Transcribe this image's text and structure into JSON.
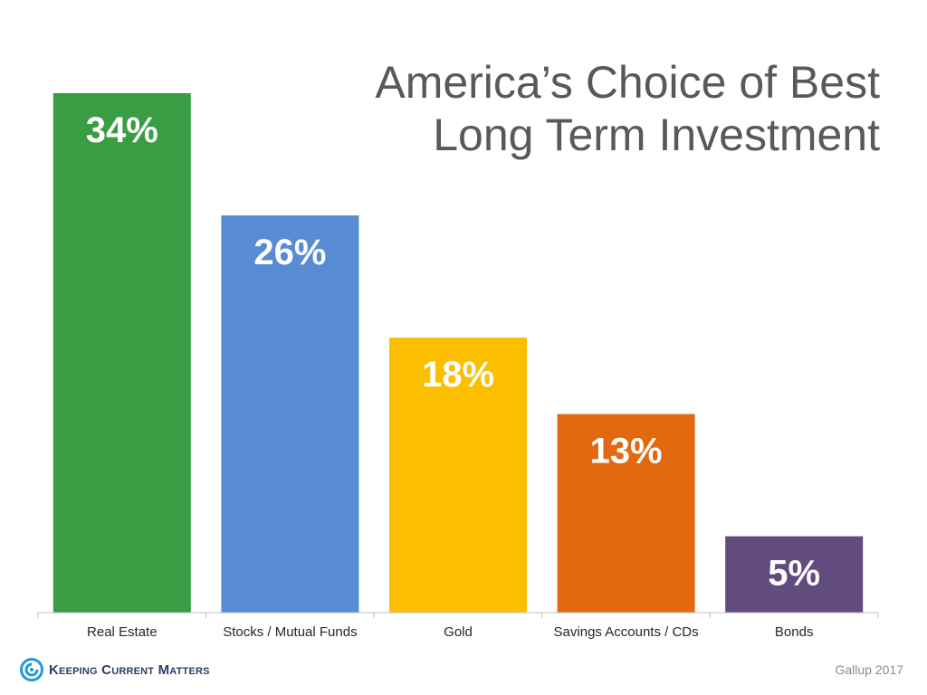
{
  "header": {
    "title_line1": "America’s Choice of Best",
    "title_line2": "Long Term Investment"
  },
  "footer": {
    "brand": "Keeping Current Matters",
    "source": "Gallup 2017"
  },
  "colors": {
    "text": "#595959",
    "label": "#ffffff",
    "axis": "#bfbfbf",
    "brand": "#2b3e63",
    "logo_accent": "#1f9bd7"
  },
  "chart_data": {
    "type": "bar",
    "title": "America’s Choice of Best Long Term Investment",
    "categories": [
      "Real Estate",
      "Stocks / Mutual Funds",
      "Gold",
      "Savings Accounts / CDs",
      "Bonds"
    ],
    "values": [
      34,
      26,
      18,
      13,
      5
    ],
    "data_labels": [
      "34%",
      "26%",
      "18%",
      "13%",
      "5%"
    ],
    "unit": "%",
    "colors": [
      "#3a9c43",
      "#578bd4",
      "#fbbf00",
      "#e2690f",
      "#624b7e"
    ],
    "ylim": [
      0,
      34
    ],
    "grid": false,
    "legend": "none",
    "xlabel": "",
    "ylabel": ""
  }
}
